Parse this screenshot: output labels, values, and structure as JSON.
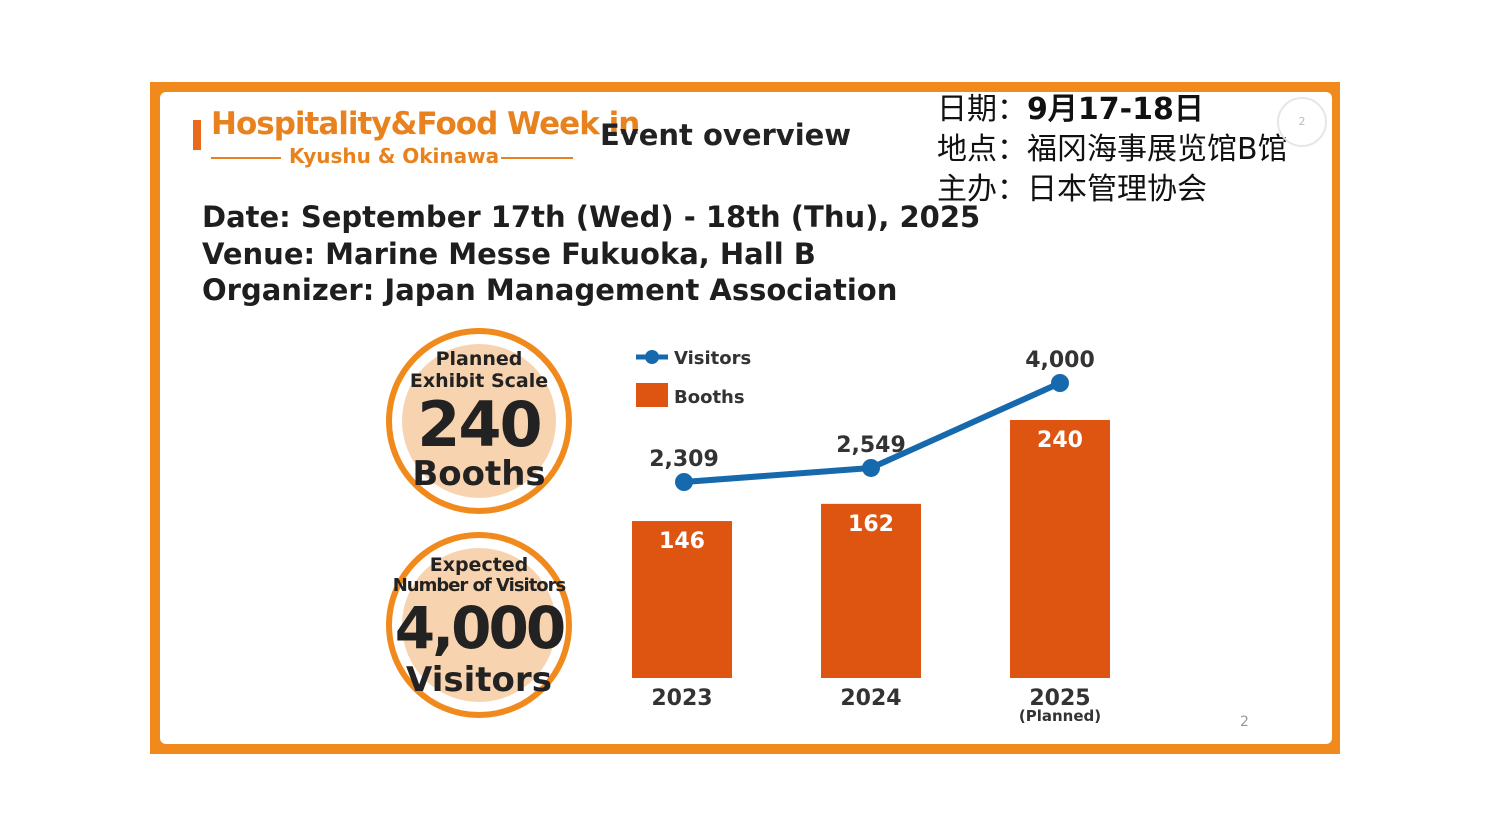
{
  "logo": {
    "main": "Hospitality&Food Week in",
    "sub": "Kyushu & Okinawa"
  },
  "header": {
    "title": "Event overview",
    "page_badge": "2"
  },
  "zh_info": {
    "date_label": "日期：",
    "date_value": "9月17-18日",
    "venue_label": "地点：",
    "venue_value": "福冈海事展览馆B馆",
    "organizer_label": "主办：",
    "organizer_value": "日本管理协会"
  },
  "info": {
    "date": "Date: September 17th (Wed) - 18th (Thu), 2025",
    "venue": "Venue: Marine Messe Fukuoka, Hall B",
    "organizer": "Organizer: Japan Management Association"
  },
  "badges": {
    "booths": {
      "line1": "Planned",
      "line2": "Exhibit Scale",
      "number": "240",
      "unit": "Booths"
    },
    "visitors": {
      "line1": "Expected",
      "line2": "Number of Visitors",
      "number": "4,000",
      "unit": "Visitors"
    }
  },
  "page_number": "2",
  "colors": {
    "orange": "#f18a1c",
    "bar": "#dd5510",
    "line": "#1669ad",
    "badge_fill": "#f8d3b0"
  },
  "chart_data": {
    "type": "bar",
    "categories": [
      "2023",
      "2024",
      "2025"
    ],
    "category_notes": [
      "",
      "",
      "(Planned)"
    ],
    "series": [
      {
        "name": "Booths",
        "type": "bar",
        "values": [
          146,
          162,
          240
        ],
        "labels": [
          "146",
          "162",
          "240"
        ]
      },
      {
        "name": "Visitors",
        "type": "line",
        "values": [
          2309,
          2549,
          4000
        ],
        "labels": [
          "2,309",
          "2,549",
          "4,000"
        ]
      }
    ],
    "legend": "top-left",
    "grid": false
  }
}
